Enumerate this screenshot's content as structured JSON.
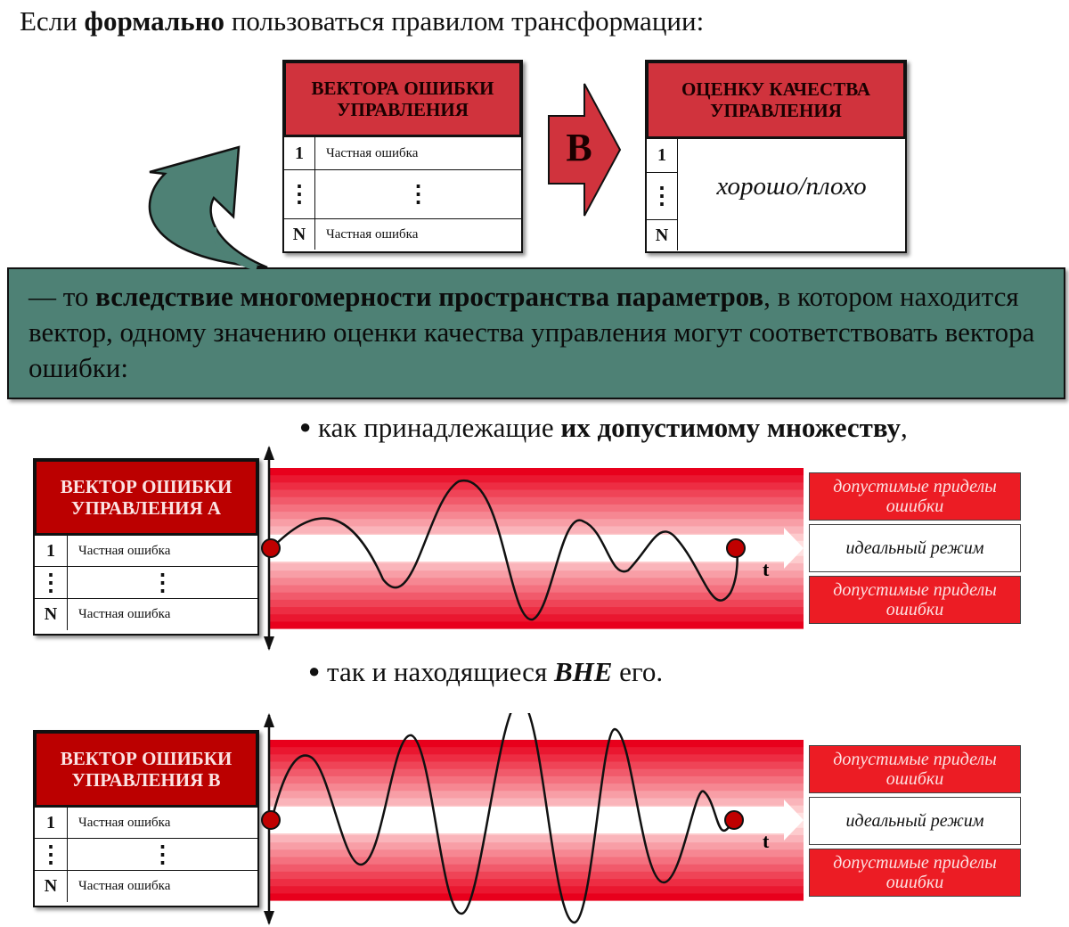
{
  "intro": {
    "prefix": "Если ",
    "bold": "формально",
    "suffix": " пользоваться правилом трансформации:"
  },
  "from_table": {
    "title": "ВЕКТОРА ОШИБКИ УПРАВЛЕНИЯ",
    "rows": [
      {
        "index": "1",
        "value": "Частная ошибка"
      },
      {
        "index": "⋮",
        "value": "⋮"
      },
      {
        "index": "N",
        "value": "Частная ошибка"
      }
    ]
  },
  "arrow_label": "В",
  "to_table": {
    "title": "ОЦЕНКУ КАЧЕСТВА УПРАВЛЕНИЯ",
    "indices": [
      "1",
      "⋮",
      "N"
    ],
    "value": "хорошо/плохо"
  },
  "callout": {
    "prefix": " — то ",
    "bold": "вследствие многомерности пространства параметров",
    "suffix": ", в котором находится вектор, одному значению оценки качества управления могут соответствовать вектора ошибки:"
  },
  "bullet1": {
    "prefix": "как принадлежащие ",
    "bold": "их допустимому множеству",
    "suffix": ","
  },
  "bullet2": {
    "prefix": "так и находящиеся ",
    "bold": "ВНЕ",
    "suffix": " его."
  },
  "vector_a": {
    "title": "ВЕКТОР ОШИБКИ УПРАВЛЕНИЯ  А",
    "rows": [
      {
        "index": "1",
        "value": "Частная ошибка"
      },
      {
        "index": "⋮",
        "value": "⋮"
      },
      {
        "index": "N",
        "value": "Частная ошибка"
      }
    ]
  },
  "vector_b": {
    "title": "ВЕКТОР ОШИБКИ УПРАВЛЕНИЯ  В",
    "rows": [
      {
        "index": "1",
        "value": "Частная ошибка"
      },
      {
        "index": "⋮",
        "value": "⋮"
      },
      {
        "index": "N",
        "value": "Частная ошибка"
      }
    ]
  },
  "plot_axis_label": "t",
  "legend": {
    "upper": "допустимые приделы ошибки",
    "middle": "идеальный режим",
    "lower": "допустимые приделы ошибки"
  },
  "colors": {
    "header_red": "#d0333d",
    "header_dark_red": "#bb0000",
    "callout_green": "#4e8175",
    "band_red": "#e8001c",
    "legend_red": "#ec1c24"
  }
}
